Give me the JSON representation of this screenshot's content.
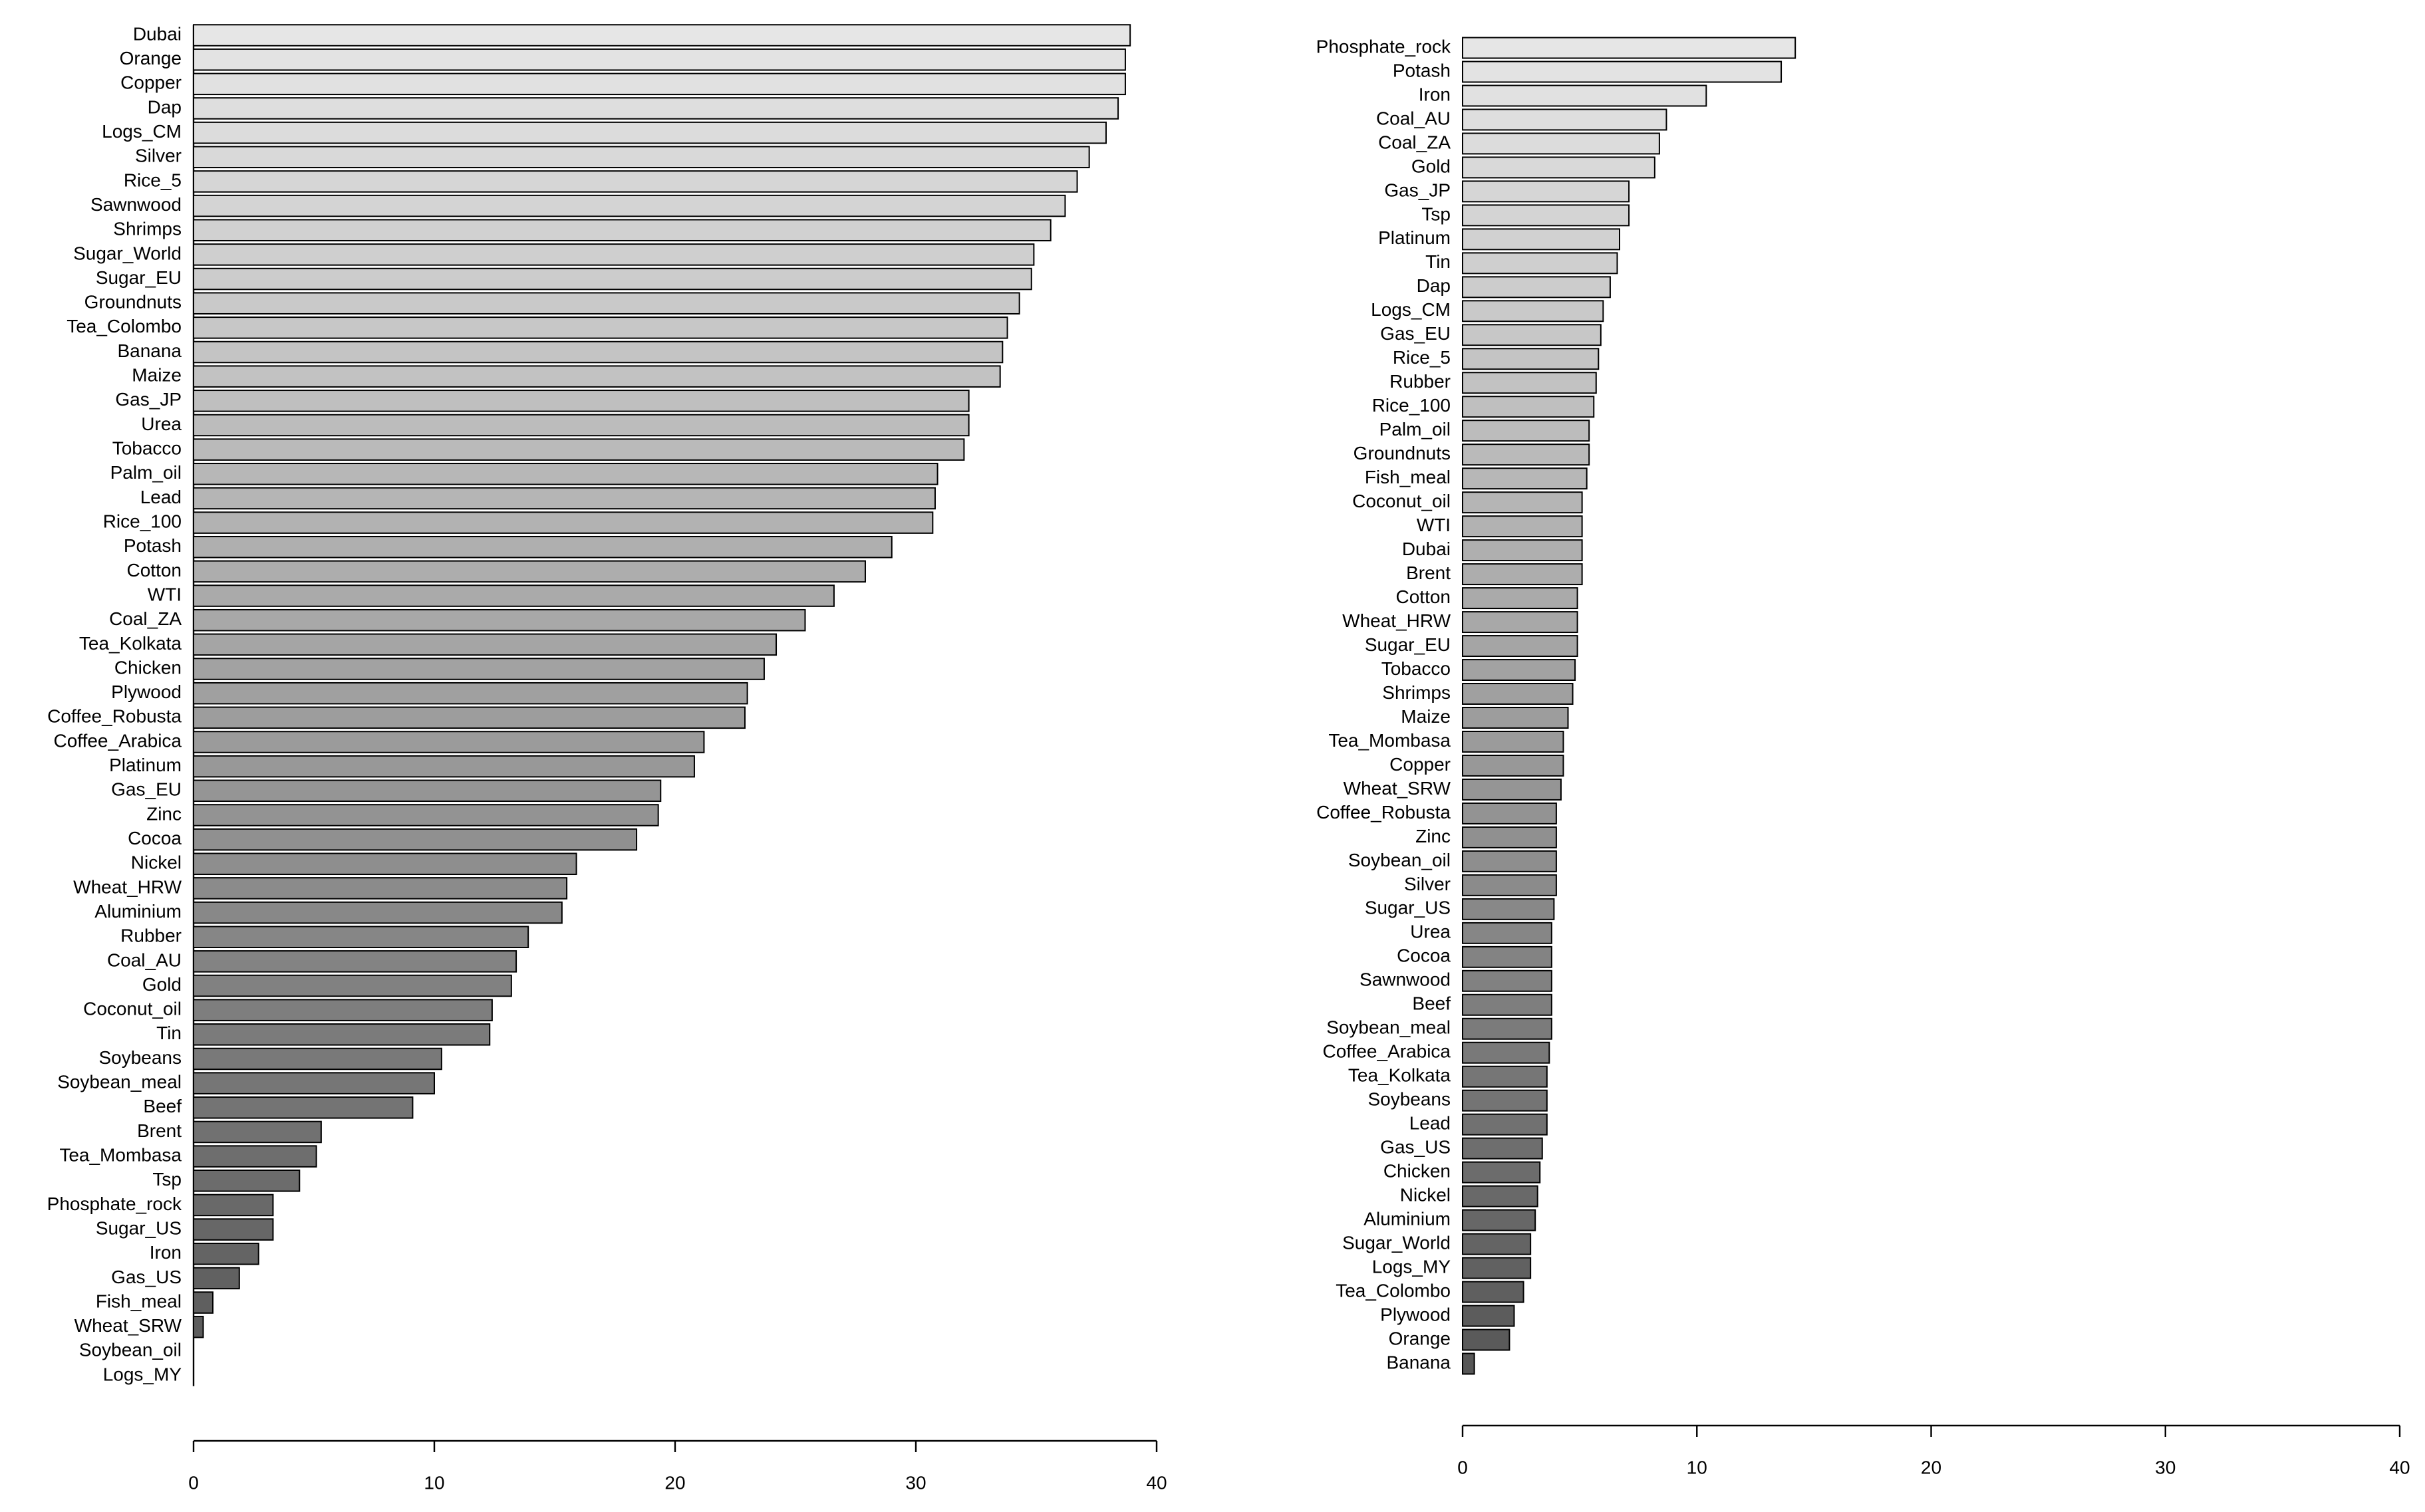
{
  "chart_data": [
    {
      "type": "bar",
      "orientation": "horizontal",
      "colors": [
        "#e6e6e6",
        "#575757"
      ],
      "categories": [
        "Dubai",
        "Orange",
        "Copper",
        "Dap",
        "Logs_CM",
        "Silver",
        "Rice_5",
        "Sawnwood",
        "Shrimps",
        "Sugar_World",
        "Sugar_EU",
        "Groundnuts",
        "Tea_Colombo",
        "Banana",
        "Maize",
        "Gas_JP",
        "Urea",
        "Tobacco",
        "Palm_oil",
        "Lead",
        "Rice_100",
        "Potash",
        "Cotton",
        "WTI",
        "Coal_ZA",
        "Tea_Kolkata",
        "Chicken",
        "Plywood",
        "Coffee_Robusta",
        "Coffee_Arabica",
        "Platinum",
        "Gas_EU",
        "Zinc",
        "Cocoa",
        "Nickel",
        "Wheat_HRW",
        "Aluminium",
        "Rubber",
        "Coal_AU",
        "Gold",
        "Coconut_oil",
        "Tin",
        "Soybeans",
        "Soybean_meal",
        "Beef",
        "Brent",
        "Tea_Mombasa",
        "Tsp",
        "Phosphate_rock",
        "Sugar_US",
        "Iron",
        "Gas_US",
        "Fish_meal",
        "Wheat_SRW",
        "Soybean_oil",
        "Logs_MY"
      ],
      "values": [
        38.9,
        38.7,
        38.7,
        38.4,
        37.9,
        37.2,
        36.7,
        36.2,
        35.6,
        34.9,
        34.8,
        34.3,
        33.8,
        33.6,
        33.5,
        32.2,
        32.2,
        32.0,
        30.9,
        30.8,
        30.7,
        29.0,
        27.9,
        26.6,
        25.4,
        24.2,
        23.7,
        23.0,
        22.9,
        21.2,
        20.8,
        19.4,
        19.3,
        18.4,
        15.9,
        15.5,
        15.3,
        13.9,
        13.4,
        13.2,
        12.4,
        12.3,
        10.3,
        10.0,
        9.1,
        5.3,
        5.1,
        4.4,
        3.3,
        3.3,
        2.7,
        1.9,
        0.8,
        0.4,
        0,
        0
      ],
      "xlim": [
        0,
        40
      ],
      "xticks": [
        0,
        10,
        20,
        30,
        40
      ]
    },
    {
      "type": "bar",
      "orientation": "horizontal",
      "colors": [
        "#e6e6e6",
        "#575757"
      ],
      "categories": [
        "Phosphate_rock",
        "Potash",
        "Iron",
        "Coal_AU",
        "Coal_ZA",
        "Gold",
        "Gas_JP",
        "Tsp",
        "Platinum",
        "Tin",
        "Dap",
        "Logs_CM",
        "Gas_EU",
        "Rice_5",
        "Rubber",
        "Rice_100",
        "Palm_oil",
        "Groundnuts",
        "Fish_meal",
        "Coconut_oil",
        "WTI",
        "Dubai",
        "Brent",
        "Cotton",
        "Wheat_HRW",
        "Sugar_EU",
        "Tobacco",
        "Shrimps",
        "Maize",
        "Tea_Mombasa",
        "Copper",
        "Wheat_SRW",
        "Coffee_Robusta",
        "Zinc",
        "Soybean_oil",
        "Silver",
        "Sugar_US",
        "Urea",
        "Cocoa",
        "Sawnwood",
        "Beef",
        "Soybean_meal",
        "Coffee_Arabica",
        "Tea_Kolkata",
        "Soybeans",
        "Lead",
        "Gas_US",
        "Chicken",
        "Nickel",
        "Aluminium",
        "Sugar_World",
        "Logs_MY",
        "Tea_Colombo",
        "Plywood",
        "Orange",
        "Banana"
      ],
      "values": [
        14.2,
        13.6,
        10.4,
        8.7,
        8.4,
        8.2,
        7.1,
        7.1,
        6.7,
        6.6,
        6.3,
        6.0,
        5.9,
        5.8,
        5.7,
        5.6,
        5.4,
        5.4,
        5.3,
        5.1,
        5.1,
        5.1,
        5.1,
        4.9,
        4.9,
        4.9,
        4.8,
        4.7,
        4.5,
        4.3,
        4.3,
        4.2,
        4.0,
        4.0,
        4.0,
        4.0,
        3.9,
        3.8,
        3.8,
        3.8,
        3.8,
        3.8,
        3.7,
        3.6,
        3.6,
        3.6,
        3.4,
        3.3,
        3.2,
        3.1,
        2.9,
        2.9,
        2.6,
        2.2,
        2.0,
        0.5
      ],
      "xlim": [
        0,
        40
      ],
      "xticks": [
        0,
        10,
        20,
        30,
        40
      ]
    }
  ]
}
